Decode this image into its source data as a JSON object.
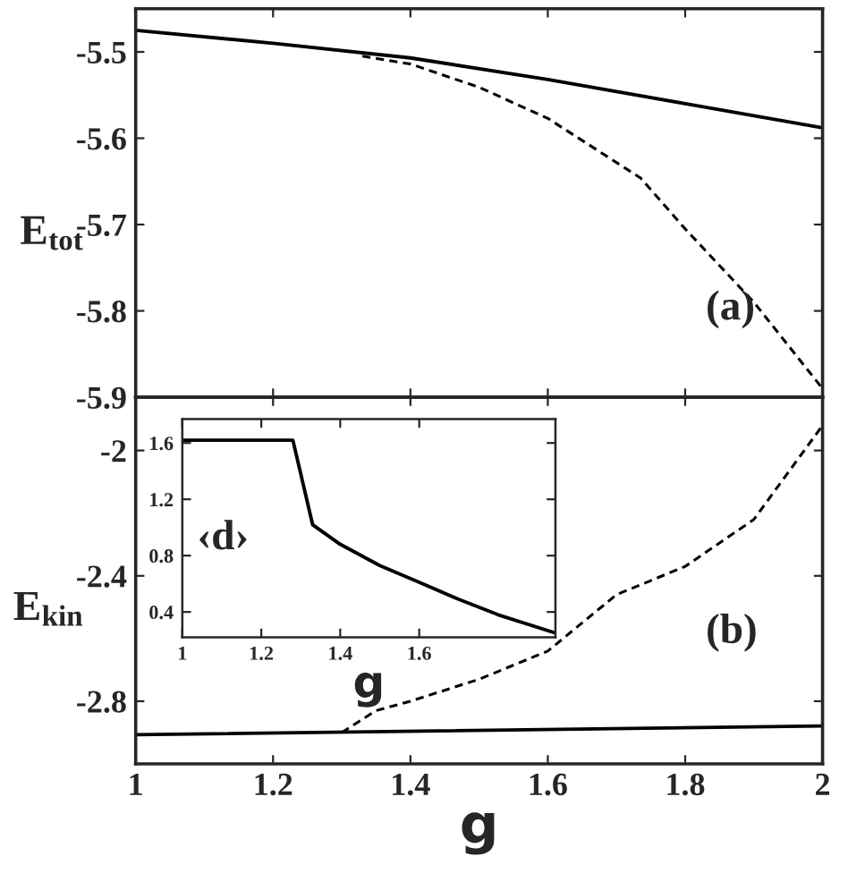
{
  "chart_data": [
    {
      "type": "line",
      "ylabel": "E$_{tot}$",
      "annotations": [
        "(a)"
      ],
      "xlim": [
        1,
        2
      ],
      "xticks": [
        1,
        1.2,
        1.4,
        1.6,
        1.8,
        2
      ],
      "ylim": [
        -5.9,
        -5.45
      ],
      "yticks": [
        -5.5,
        -5.6,
        -5.7,
        -5.8,
        -5.9
      ],
      "tick_labels": "y",
      "series": [
        {
          "color": "#000000",
          "line_style": "solid",
          "x": [
            1,
            1.2,
            1.4,
            1.6,
            1.8,
            2
          ],
          "values": [
            -5.475,
            -5.49,
            -5.507,
            -5.532,
            -5.56,
            -5.588
          ]
        },
        {
          "color": "#000000",
          "line_style": "dashed",
          "x": [
            1.33,
            1.4,
            1.5,
            1.6,
            1.735,
            1.8,
            1.9,
            2
          ],
          "values": [
            -5.505,
            -5.514,
            -5.541,
            -5.577,
            -5.646,
            -5.705,
            -5.79,
            -5.89
          ]
        }
      ]
    },
    {
      "type": "line",
      "xlabel": "g",
      "ylabel": "E$_{kin}$",
      "annotations": [
        "(b)"
      ],
      "xlim": [
        1,
        2
      ],
      "xticks": [
        1,
        1.2,
        1.4,
        1.6,
        1.8,
        2
      ],
      "ylim": [
        -3.0,
        -1.83
      ],
      "yticks": [
        -2,
        -2.4,
        -2.8
      ],
      "series": [
        {
          "color": "#000000",
          "line_style": "solid",
          "x": [
            1,
            2
          ],
          "values": [
            -2.907,
            -2.879
          ]
        },
        {
          "color": "#000000",
          "line_style": "dashed",
          "x": [
            1.3,
            1.35,
            1.4,
            1.5,
            1.6,
            1.7,
            1.8,
            1.9,
            2
          ],
          "values": [
            -2.9,
            -2.83,
            -2.8,
            -2.73,
            -2.64,
            -2.46,
            -2.37,
            -2.22,
            -1.92
          ]
        }
      ]
    },
    {
      "type": "line",
      "xlabel": "g",
      "ylabel": "‹d›",
      "xlim": [
        1,
        1.945
      ],
      "xticks": [
        1,
        1.2,
        1.4,
        1.6
      ],
      "ylim": [
        0.22,
        1.77
      ],
      "yticks": [
        0.4,
        0.8,
        1.2,
        1.6
      ],
      "series": [
        {
          "color": "#000000",
          "line_style": "solid",
          "x": [
            1,
            1.28,
            1.33,
            1.4,
            1.5,
            1.6,
            1.7,
            1.8,
            1.945
          ],
          "values": [
            1.62,
            1.62,
            1.02,
            0.88,
            0.73,
            0.61,
            0.49,
            0.38,
            0.25
          ]
        }
      ]
    }
  ]
}
